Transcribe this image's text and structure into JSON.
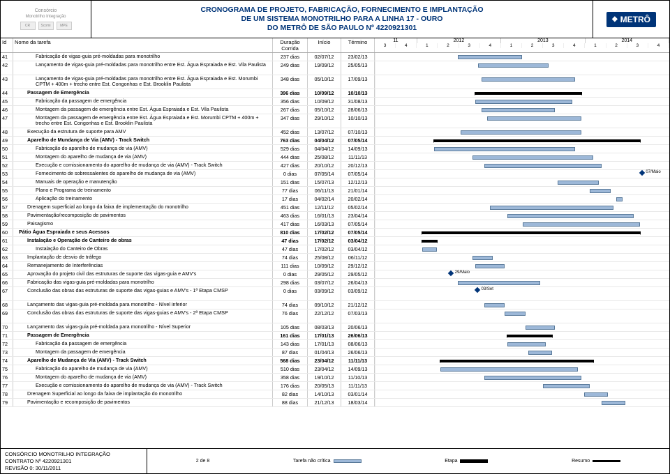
{
  "header": {
    "consortium_top": "Consórcio",
    "consortium_sub": "Monotrilho Integração",
    "mini_logos": [
      "CR",
      "Scomi",
      "MPE"
    ],
    "title_l1": "CRONOGRAMA DE PROJETO, FABRICAÇÃO, FORNECIMENTO E IMPLANTAÇÃO",
    "title_l2": "DE UM SISTEMA MONOTRILHO PARA A LINHA 17 - OURO",
    "title_l3": "DO METRÔ DE SÃO PAULO Nº 4220921301",
    "metro": "METRÔ"
  },
  "columns": {
    "id": "Id",
    "name": "Nome da tarefa",
    "dur": "Duração Corrida",
    "start": "Início",
    "end": "Término"
  },
  "years": [
    "11",
    "2012",
    "2013",
    "2014"
  ],
  "quarters": [
    "3",
    "4",
    "1",
    "2",
    "3",
    "4",
    "1",
    "2",
    "3",
    "4",
    "1",
    "2",
    "3",
    "4"
  ],
  "timeline": {
    "start_pct_origin": 0,
    "unit_per_q": 7.14
  },
  "rows": [
    {
      "id": "41",
      "name": "Fabricação de vigas-guia pré-moldadas para monotrilho",
      "dur": "237 dias",
      "start": "02/07/12",
      "end": "23/02/13",
      "indent": 3,
      "bar": [
        28,
        22
      ]
    },
    {
      "id": "42",
      "name": "Lançamento de vigas-guia pré-moldadas para monotrilho entre Est. Água Espraiada e Est. Vila Paulista",
      "dur": "249 dias",
      "start": "19/09/12",
      "end": "25/05/13",
      "indent": 3,
      "bar": [
        35,
        24
      ],
      "tall": true
    },
    {
      "id": "43",
      "name": "Lançamento de vigas-guia pré-moldadas para monotrilho entre Est. Água Espraiada e Est. Morumbi CPTM + 400m + trecho entre Est. Congonhas e Est. Brooklin Paulista",
      "dur": "348 dias",
      "start": "05/10/12",
      "end": "17/09/13",
      "indent": 3,
      "bar": [
        36,
        32
      ],
      "tall": true
    },
    {
      "id": "44",
      "name": "Passagem de Emergência",
      "dur": "396 dias",
      "start": "10/09/12",
      "end": "10/10/13",
      "indent": 2,
      "bold": true,
      "summary": true,
      "bar": [
        34,
        36
      ]
    },
    {
      "id": "45",
      "name": "Fabricação da passagem de emergência",
      "dur": "356 dias",
      "start": "10/09/12",
      "end": "31/08/13",
      "indent": 3,
      "bar": [
        34,
        33
      ]
    },
    {
      "id": "46",
      "name": "Montagem da passagem de emergência entre Est. Água Espraiada e Est. Vila Paulista",
      "dur": "267 dias",
      "start": "05/10/12",
      "end": "28/06/13",
      "indent": 3,
      "bar": [
        36,
        25
      ]
    },
    {
      "id": "47",
      "name": "Montagem da passagem de emergência entre Est. Água Espraiada e Est. Morumbi CPTM + 400m + trecho entre Est. Congonhas e Est. Brooklin Paulista",
      "dur": "347 dias",
      "start": "29/10/12",
      "end": "10/10/13",
      "indent": 3,
      "bar": [
        38,
        32
      ],
      "tall": true
    },
    {
      "id": "48",
      "name": "Execução da estrutura de suporte para AMV",
      "dur": "452 dias",
      "start": "13/07/12",
      "end": "07/10/13",
      "indent": 2,
      "bar": [
        29,
        41
      ]
    },
    {
      "id": "49",
      "name": "Aparelho de Mundança de Via (AMV) - Track Switch",
      "dur": "763 dias",
      "start": "04/04/12",
      "end": "07/05/14",
      "indent": 2,
      "bold": true,
      "summary": true,
      "bar": [
        20,
        70
      ]
    },
    {
      "id": "50",
      "name": "Fabricação do aparelho de mudança de via (AMV)",
      "dur": "529 dias",
      "start": "04/04/12",
      "end": "14/09/13",
      "indent": 3,
      "bar": [
        20,
        48
      ]
    },
    {
      "id": "51",
      "name": "Montagem do aparelho de mudança de via (AMV)",
      "dur": "444 dias",
      "start": "25/08/12",
      "end": "11/11/13",
      "indent": 3,
      "bar": [
        33,
        41
      ]
    },
    {
      "id": "52",
      "name": "Execução e comissionamento do aparelho de mudança de via (AMV) - Track Switch",
      "dur": "427 dias",
      "start": "20/10/12",
      "end": "20/12/13",
      "indent": 3,
      "bar": [
        37,
        40
      ]
    },
    {
      "id": "53",
      "name": "Fornecimento de sobressalentes do aparelho de mudança de via (AMV)",
      "dur": "0 dias",
      "start": "07/05/14",
      "end": "07/05/14",
      "indent": 3,
      "milestone": 90,
      "ms_label": "07/Maio"
    },
    {
      "id": "54",
      "name": "Manuais de operação e manutenção",
      "dur": "151 dias",
      "start": "15/07/13",
      "end": "12/12/13",
      "indent": 3,
      "bar": [
        62,
        14
      ]
    },
    {
      "id": "55",
      "name": "Plano e Programa de treinamento",
      "dur": "77 dias",
      "start": "06/11/13",
      "end": "21/01/14",
      "indent": 3,
      "bar": [
        73,
        7
      ]
    },
    {
      "id": "56",
      "name": "Aplicação do treinamento",
      "dur": "17 dias",
      "start": "04/02/14",
      "end": "20/02/14",
      "indent": 3,
      "bar": [
        82,
        2
      ]
    },
    {
      "id": "57",
      "name": "Drenagem superficial ao longo da faixa de implementação do monotrilho",
      "dur": "451 dias",
      "start": "12/11/12",
      "end": "05/02/14",
      "indent": 2,
      "bar": [
        39,
        42
      ]
    },
    {
      "id": "58",
      "name": "Pavimentação/recomposição de pavimentos",
      "dur": "463 dias",
      "start": "16/01/13",
      "end": "23/04/14",
      "indent": 2,
      "bar": [
        45,
        43
      ]
    },
    {
      "id": "59",
      "name": "Paisagismo",
      "dur": "417 dias",
      "start": "16/03/13",
      "end": "07/05/14",
      "indent": 2,
      "bar": [
        50,
        40
      ]
    },
    {
      "id": "60",
      "name": "Pátio Água Espraiada e seus Acessos",
      "dur": "810 dias",
      "start": "17/02/12",
      "end": "07/05/14",
      "indent": 1,
      "bold": true,
      "summary": true,
      "bar": [
        16,
        74
      ]
    },
    {
      "id": "61",
      "name": "Instalação e Operação de Canteiro de obras",
      "dur": "47 dias",
      "start": "17/02/12",
      "end": "03/04/12",
      "indent": 2,
      "bold": true,
      "summary": true,
      "bar": [
        16,
        5
      ]
    },
    {
      "id": "62",
      "name": "Instalação do Canteiro de Obras",
      "dur": "47 dias",
      "start": "17/02/12",
      "end": "03/04/12",
      "indent": 3,
      "bar": [
        16,
        5
      ]
    },
    {
      "id": "63",
      "name": "Implantação de desvio de tráfego",
      "dur": "74 dias",
      "start": "25/08/12",
      "end": "06/11/12",
      "indent": 2,
      "bar": [
        33,
        7
      ]
    },
    {
      "id": "64",
      "name": "Remanejamento de Interferências",
      "dur": "111 dias",
      "start": "10/09/12",
      "end": "29/12/12",
      "indent": 2,
      "bar": [
        34,
        10
      ]
    },
    {
      "id": "65",
      "name": "Aprovação do projeto civil das estruturas de suporte das vigas-guia e AMV's",
      "dur": "0 dias",
      "start": "29/05/12",
      "end": "29/05/12",
      "indent": 2,
      "milestone": 25,
      "ms_label": "29/Maio"
    },
    {
      "id": "66",
      "name": "Fabricação das vigas-guia pré-moldadas para monotrilho",
      "dur": "298 dias",
      "start": "03/07/12",
      "end": "26/04/13",
      "indent": 2,
      "bar": [
        28,
        28
      ]
    },
    {
      "id": "67",
      "name": "Conclusão das obras das estruturas de suporte das vigas-guias e AMV's - 1ª Etapa CMSP",
      "dur": "0 dias",
      "start": "03/09/12",
      "end": "03/09/12",
      "indent": 2,
      "milestone": 34,
      "ms_label": "03/Set",
      "tall": true
    },
    {
      "id": "68",
      "name": "Lançamento das vigas-guia pré-moldada para monotrilho - Nível inferior",
      "dur": "74 dias",
      "start": "09/10/12",
      "end": "21/12/12",
      "indent": 2,
      "bar": [
        37,
        7
      ]
    },
    {
      "id": "69",
      "name": "Conclusão das obras das estruturas de suporte das vigas-guias e AMV's - 2ª Etapa CMSP",
      "dur": "76 dias",
      "start": "22/12/12",
      "end": "07/03/13",
      "indent": 2,
      "bar": [
        44,
        7
      ],
      "tall": true
    },
    {
      "id": "70",
      "name": "Lançamento das vigas-guia pré-moldada para monotrilho - Nível Superior",
      "dur": "105 dias",
      "start": "08/03/13",
      "end": "20/06/13",
      "indent": 2,
      "bar": [
        51,
        10
      ]
    },
    {
      "id": "71",
      "name": "Passagem de Emergência",
      "dur": "161 dias",
      "start": "17/01/13",
      "end": "26/06/13",
      "indent": 2,
      "bold": true,
      "summary": true,
      "bar": [
        45,
        15
      ]
    },
    {
      "id": "72",
      "name": "Fabricação da passagem de emergência",
      "dur": "143 dias",
      "start": "17/01/13",
      "end": "08/06/13",
      "indent": 3,
      "bar": [
        45,
        13
      ]
    },
    {
      "id": "73",
      "name": "Montagem da passagem de emergência",
      "dur": "87 dias",
      "start": "01/04/13",
      "end": "26/06/13",
      "indent": 3,
      "bar": [
        52,
        8
      ]
    },
    {
      "id": "74",
      "name": "Aparelho de Mudança de Via (AMV) - Track Switch",
      "dur": "568 dias",
      "start": "23/04/12",
      "end": "11/11/13",
      "indent": 2,
      "bold": true,
      "summary": true,
      "bar": [
        22,
        52
      ]
    },
    {
      "id": "75",
      "name": "Fabricação do aparelho de mudança de via (AMV)",
      "dur": "510 dias",
      "start": "23/04/12",
      "end": "14/09/13",
      "indent": 3,
      "bar": [
        22,
        47
      ]
    },
    {
      "id": "76",
      "name": "Montagem do aparelho de mudança de via (AMV)",
      "dur": "358 dias",
      "start": "19/10/12",
      "end": "11/10/13",
      "indent": 3,
      "bar": [
        37,
        33
      ]
    },
    {
      "id": "77",
      "name": "Execução e comissionamento do aparelho de mudança de via (AMV) - Track Switch",
      "dur": "176 dias",
      "start": "20/05/13",
      "end": "11/11/13",
      "indent": 3,
      "bar": [
        57,
        16
      ]
    },
    {
      "id": "78",
      "name": "Drenagem Superficial ao longo da faixa de implantação do monotrilho",
      "dur": "82 dias",
      "start": "14/10/13",
      "end": "03/01/14",
      "indent": 2,
      "bar": [
        71,
        8
      ]
    },
    {
      "id": "79",
      "name": "Pavimentação e recomposição de pavimentos",
      "dur": "88 dias",
      "start": "21/12/13",
      "end": "18/03/14",
      "indent": 2,
      "bar": [
        77,
        8
      ]
    }
  ],
  "footer": {
    "l1": "CONSÓRCIO MONOTRILHO INTEGRAÇÃO",
    "l2": "CONTRATO Nº 4220921301",
    "l3": "REVISÃO 0: 30/11/2011",
    "page": "2 de 8",
    "legend": {
      "nc": "Tarefa não crítica",
      "etapa": "Etapa",
      "resumo": "Resumo"
    }
  }
}
